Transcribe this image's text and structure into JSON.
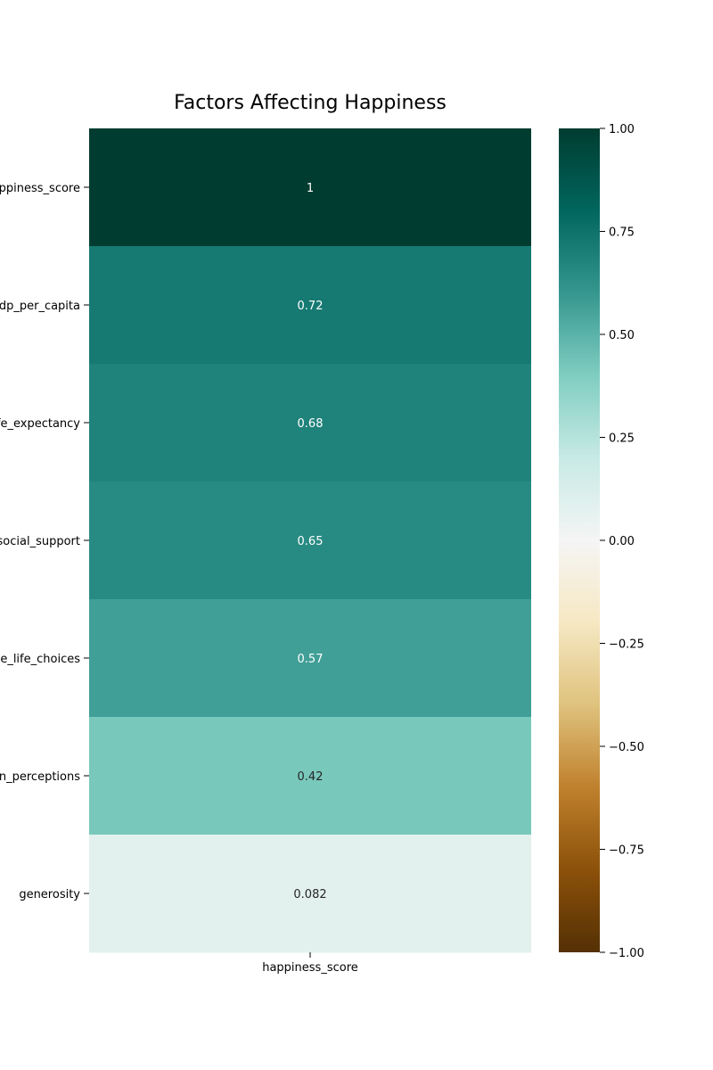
{
  "chart_data": {
    "type": "heatmap",
    "title": "Factors Affecting Happiness",
    "column": "happiness_score",
    "rows": [
      {
        "label": "happiness_score",
        "value": 1.0,
        "annotation": "1"
      },
      {
        "label": "gdp_per_capita",
        "value": 0.72,
        "annotation": "0.72"
      },
      {
        "label": "life_expectancy",
        "value": 0.68,
        "annotation": "0.68"
      },
      {
        "label": "social_support",
        "value": 0.65,
        "annotation": "0.65"
      },
      {
        "label": "free_life_choices",
        "value": 0.57,
        "annotation": "0.57"
      },
      {
        "label": "corruption_perceptions",
        "value": 0.42,
        "annotation": "0.42"
      },
      {
        "label": "generosity",
        "value": 0.082,
        "annotation": "0.082"
      }
    ],
    "colorbar": {
      "range": [
        -1.0,
        1.0
      ],
      "ticks": [
        1.0,
        0.75,
        0.5,
        0.25,
        0.0,
        -0.25,
        -0.5,
        -0.75,
        -1.0
      ],
      "tick_labels": [
        "1.00",
        "0.75",
        "0.50",
        "0.25",
        "0.00",
        "−0.25",
        "−0.50",
        "−0.75",
        "−1.00"
      ],
      "colormap": "BrBG",
      "colormap_stops": [
        {
          "v": -1.0,
          "c": "#543005"
        },
        {
          "v": -0.8,
          "c": "#8c510a"
        },
        {
          "v": -0.6,
          "c": "#bf812d"
        },
        {
          "v": -0.4,
          "c": "#dfc27d"
        },
        {
          "v": -0.2,
          "c": "#f6e8c3"
        },
        {
          "v": 0.0,
          "c": "#f5f5f5"
        },
        {
          "v": 0.2,
          "c": "#c7eae5"
        },
        {
          "v": 0.4,
          "c": "#80cdc1"
        },
        {
          "v": 0.6,
          "c": "#35978f"
        },
        {
          "v": 0.8,
          "c": "#01665e"
        },
        {
          "v": 1.0,
          "c": "#003c30"
        }
      ]
    }
  }
}
